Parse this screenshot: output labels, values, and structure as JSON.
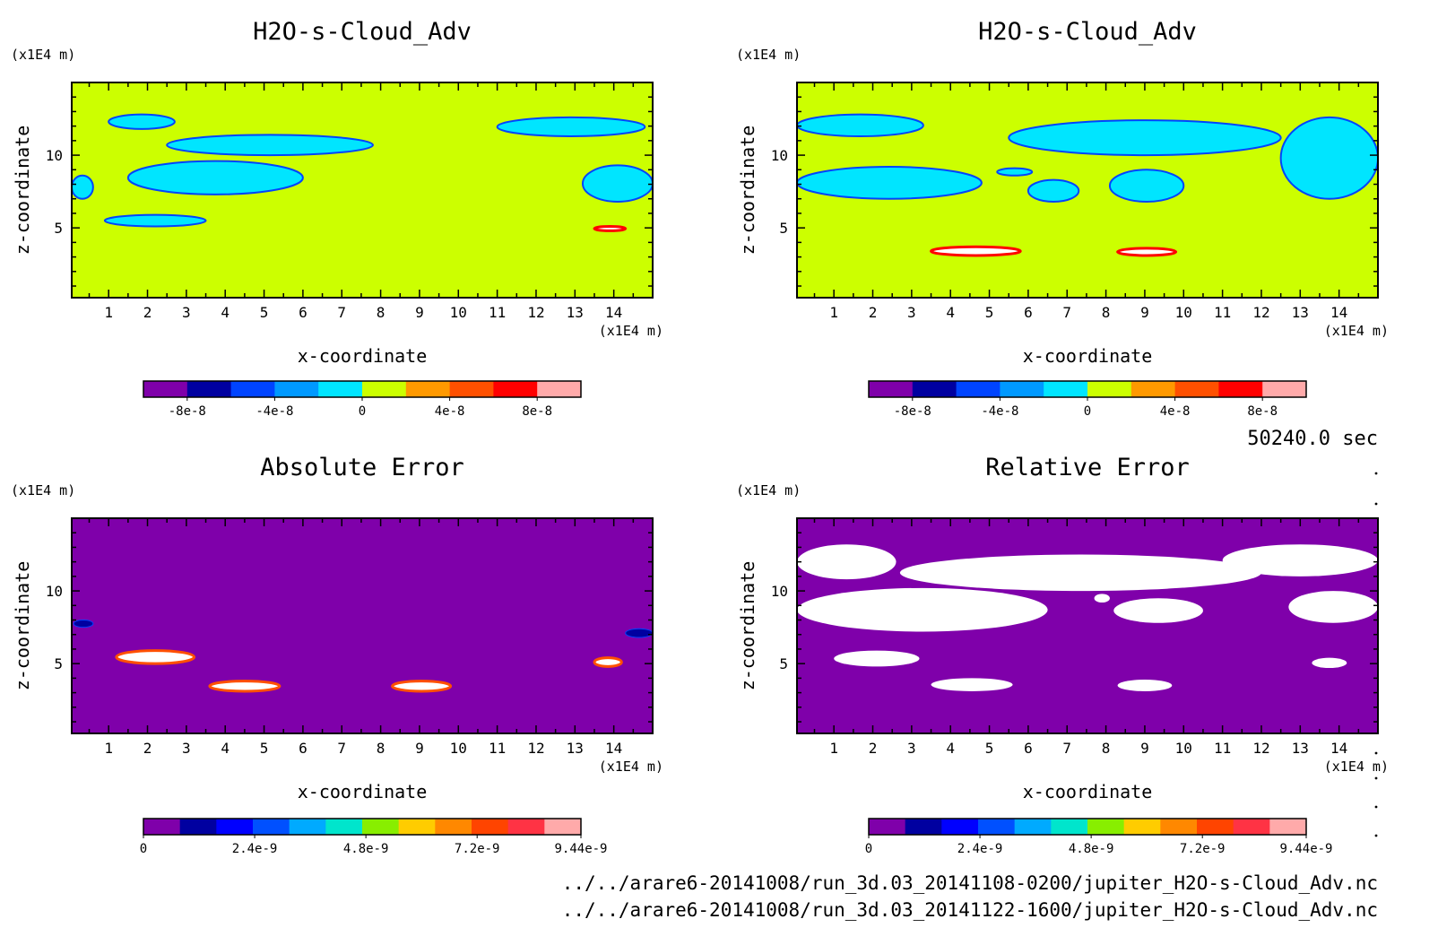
{
  "time_label": "50240.0 sec",
  "files": [
    "../../arare6-20141008/run_3d.03_20141108-0200/jupiter_H2O-s-Cloud_Adv.nc",
    "../../arare6-20141008/run_3d.03_20141122-1600/jupiter_H2O-s-Cloud_Adv.nc"
  ],
  "colors": {
    "field_background": "#ccff00",
    "cloud_features": "#00e5ff",
    "error_background": "#7f00aa",
    "relative_error_undefined": "#ffffff"
  },
  "colorbars": {
    "field": {
      "colors": [
        "#7f00aa",
        "#0000a0",
        "#0044ff",
        "#0099ff",
        "#00e5ff",
        "#ccff00",
        "#ff9900",
        "#ff5000",
        "#ff0000",
        "#ffaaaa"
      ],
      "tick_labels": [
        "-8e-8",
        "-4e-8",
        "0",
        "4e-8",
        "8e-8"
      ]
    },
    "error": {
      "colors": [
        "#7f00aa",
        "#0000a0",
        "#0000ff",
        "#0050ff",
        "#00aaff",
        "#00e5cc",
        "#88ee00",
        "#ffcc00",
        "#ff8800",
        "#ff4400",
        "#ff3344",
        "#ffaaaa"
      ],
      "tick_labels": [
        "0",
        "2.4e-9",
        "4.8e-9",
        "7.2e-9",
        "9.44e-9"
      ]
    }
  },
  "chart_data": [
    {
      "type": "heatmap",
      "title": "H2O-s-Cloud_Adv",
      "xlabel": "x-coordinate",
      "ylabel": "z-coordinate",
      "x_unit": "(x1E4 m)",
      "y_unit": "(x1E4 m)",
      "x_ticks": [
        1,
        2,
        3,
        4,
        5,
        6,
        7,
        8,
        9,
        10,
        11,
        12,
        13,
        14
      ],
      "y_ticks": [
        5,
        10
      ],
      "xlim": [
        0.05,
        15.0
      ],
      "ylim": [
        0.2,
        15.0
      ],
      "color_range": [
        -1e-07,
        1e-07
      ],
      "background_value": 0,
      "features": [
        {
          "x": [
            1.0,
            2.7
          ],
          "z": [
            11.8,
            12.8
          ],
          "kind": "cyan"
        },
        {
          "x": [
            2.5,
            7.8
          ],
          "z": [
            10.0,
            11.4
          ],
          "kind": "cyan"
        },
        {
          "x": [
            1.5,
            6.0
          ],
          "z": [
            7.3,
            9.6
          ],
          "kind": "cyan"
        },
        {
          "x": [
            0.05,
            0.6
          ],
          "z": [
            7.0,
            8.6
          ],
          "kind": "cyan"
        },
        {
          "x": [
            0.9,
            3.5
          ],
          "z": [
            5.1,
            5.9
          ],
          "kind": "cyan"
        },
        {
          "x": [
            13.5,
            14.3
          ],
          "z": [
            4.8,
            5.1
          ],
          "kind": "red"
        },
        {
          "x": [
            11.0,
            14.8
          ],
          "z": [
            11.3,
            12.6
          ],
          "kind": "cyan"
        },
        {
          "x": [
            13.2,
            15.0
          ],
          "z": [
            6.8,
            9.3
          ],
          "kind": "cyan"
        }
      ]
    },
    {
      "type": "heatmap",
      "title": "H2O-s-Cloud_Adv",
      "xlabel": "x-coordinate",
      "ylabel": "z-coordinate",
      "x_unit": "(x1E4 m)",
      "y_unit": "(x1E4 m)",
      "x_ticks": [
        1,
        2,
        3,
        4,
        5,
        6,
        7,
        8,
        9,
        10,
        11,
        12,
        13,
        14
      ],
      "y_ticks": [
        5,
        10
      ],
      "xlim": [
        0.05,
        15.0
      ],
      "ylim": [
        0.2,
        15.0
      ],
      "color_range": [
        -1e-07,
        1e-07
      ],
      "background_value": 0,
      "features": [
        {
          "x": [
            0.05,
            3.3
          ],
          "z": [
            11.3,
            12.8
          ],
          "kind": "cyan"
        },
        {
          "x": [
            5.5,
            12.5
          ],
          "z": [
            10.0,
            12.4
          ],
          "kind": "cyan"
        },
        {
          "x": [
            0.05,
            4.8
          ],
          "z": [
            7.0,
            9.2
          ],
          "kind": "cyan"
        },
        {
          "x": [
            5.2,
            6.1
          ],
          "z": [
            8.6,
            9.1
          ],
          "kind": "cyan"
        },
        {
          "x": [
            6.0,
            7.3
          ],
          "z": [
            6.8,
            8.3
          ],
          "kind": "cyan"
        },
        {
          "x": [
            8.1,
            10.0
          ],
          "z": [
            6.8,
            9.0
          ],
          "kind": "cyan"
        },
        {
          "x": [
            12.5,
            15.0
          ],
          "z": [
            7.0,
            12.6
          ],
          "kind": "cyan"
        },
        {
          "x": [
            3.5,
            5.8
          ],
          "z": [
            3.1,
            3.7
          ],
          "kind": "red"
        },
        {
          "x": [
            8.3,
            9.8
          ],
          "z": [
            3.1,
            3.6
          ],
          "kind": "red"
        }
      ]
    },
    {
      "type": "heatmap",
      "title": "Absolute Error",
      "xlabel": "x-coordinate",
      "ylabel": "z-coordinate",
      "x_unit": "(x1E4 m)",
      "y_unit": "(x1E4 m)",
      "x_ticks": [
        1,
        2,
        3,
        4,
        5,
        6,
        7,
        8,
        9,
        10,
        11,
        12,
        13,
        14
      ],
      "y_ticks": [
        5,
        10
      ],
      "xlim": [
        0.05,
        15.0
      ],
      "ylim": [
        0.2,
        15.0
      ],
      "color_range": [
        0,
        9.44e-09
      ],
      "background_value": 0,
      "features": [
        {
          "x": [
            1.2,
            3.2
          ],
          "z": [
            5.0,
            5.9
          ],
          "kind": "hot"
        },
        {
          "x": [
            3.6,
            5.4
          ],
          "z": [
            3.1,
            3.8
          ],
          "kind": "hot"
        },
        {
          "x": [
            8.3,
            9.8
          ],
          "z": [
            3.1,
            3.8
          ],
          "kind": "hot"
        },
        {
          "x": [
            13.5,
            14.2
          ],
          "z": [
            4.8,
            5.4
          ],
          "kind": "hot"
        },
        {
          "x": [
            0.1,
            0.6
          ],
          "z": [
            7.5,
            8.0
          ],
          "kind": "blue"
        },
        {
          "x": [
            14.3,
            15.0
          ],
          "z": [
            6.8,
            7.4
          ],
          "kind": "blue"
        }
      ]
    },
    {
      "type": "heatmap",
      "title": "Relative Error",
      "xlabel": "x-coordinate",
      "ylabel": "z-coordinate",
      "x_unit": "(x1E4 m)",
      "y_unit": "(x1E4 m)",
      "x_ticks": [
        1,
        2,
        3,
        4,
        5,
        6,
        7,
        8,
        9,
        10,
        11,
        12,
        13,
        14
      ],
      "y_ticks": [
        5,
        10
      ],
      "xlim": [
        0.05,
        15.0
      ],
      "ylim": [
        0.2,
        15.0
      ],
      "color_range": [
        0,
        9.44e-09
      ],
      "background_value": 0,
      "features": [
        {
          "x": [
            0.05,
            2.6
          ],
          "z": [
            10.8,
            13.2
          ],
          "kind": "white"
        },
        {
          "x": [
            2.7,
            12.0
          ],
          "z": [
            10.0,
            12.5
          ],
          "kind": "white"
        },
        {
          "x": [
            11.0,
            15.0
          ],
          "z": [
            11.0,
            13.2
          ],
          "kind": "white"
        },
        {
          "x": [
            0.05,
            6.5
          ],
          "z": [
            7.2,
            10.2
          ],
          "kind": "white"
        },
        {
          "x": [
            7.7,
            8.1
          ],
          "z": [
            9.2,
            9.8
          ],
          "kind": "white"
        },
        {
          "x": [
            8.2,
            10.5
          ],
          "z": [
            7.8,
            9.5
          ],
          "kind": "white"
        },
        {
          "x": [
            12.7,
            15.0
          ],
          "z": [
            7.8,
            10.0
          ],
          "kind": "white"
        },
        {
          "x": [
            1.0,
            3.2
          ],
          "z": [
            4.8,
            5.9
          ],
          "kind": "white"
        },
        {
          "x": [
            3.5,
            5.6
          ],
          "z": [
            3.1,
            4.0
          ],
          "kind": "white"
        },
        {
          "x": [
            8.3,
            9.7
          ],
          "z": [
            3.1,
            3.9
          ],
          "kind": "white"
        },
        {
          "x": [
            13.3,
            14.2
          ],
          "z": [
            4.7,
            5.4
          ],
          "kind": "white"
        }
      ]
    }
  ]
}
